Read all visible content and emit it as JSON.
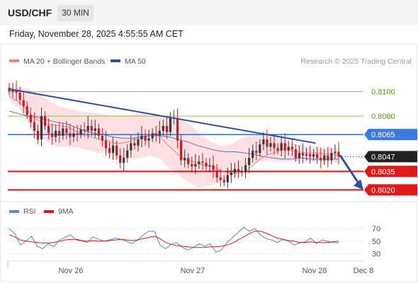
{
  "header": {
    "symbol": "USD/CHF",
    "timeframe": "30 MIN"
  },
  "datetime": "Friday, November 28, 2025 4:55:55 AM CET",
  "legend": {
    "ma20": "MA 20 + Bollinger Bands",
    "ma50": "MA 50",
    "rsi": "RSI",
    "ma9": "9MA"
  },
  "copyright": "Research © 2025 Trading Central",
  "colors": {
    "ma20": "#f08080",
    "ma50": "#2c4f9e",
    "bands_fill": "#ffd9dc",
    "bull": "#3a3a3a",
    "bear": "#c0202a",
    "resistance": "#8fc04d",
    "support": "#e01818",
    "pivot": "#3a7be0",
    "trendline": "#2f4f9e",
    "rsi": "#5b82d6"
  },
  "chart_data": [
    {
      "type": "candlestick",
      "title": "USD/CHF 30 MIN",
      "x_ticks": [
        "Nov 26",
        "Nov 27",
        "Nov 28",
        "Dec 8"
      ],
      "ylim": [
        0.8011,
        0.8114
      ],
      "levels": [
        {
          "label": "0.8100",
          "value": 0.81,
          "kind": "resistance"
        },
        {
          "label": "0.8080",
          "value": 0.808,
          "kind": "resistance"
        },
        {
          "label": "0.8065",
          "value": 0.8065,
          "kind": "pivot"
        },
        {
          "label": "0.8035",
          "value": 0.8035,
          "kind": "support"
        },
        {
          "label": "0.8020",
          "value": 0.802,
          "kind": "support"
        }
      ],
      "last_price": {
        "label": "0.8047",
        "value": 0.8047
      },
      "price_path": [
        0.81,
        0.8101,
        0.8099,
        0.8093,
        0.8088,
        0.8081,
        0.8075,
        0.8068,
        0.8061,
        0.808,
        0.8072,
        0.8066,
        0.8063,
        0.8068,
        0.8064,
        0.807,
        0.8066,
        0.8063,
        0.8066,
        0.8065,
        0.8069,
        0.8068,
        0.8072,
        0.8068,
        0.807,
        0.8064,
        0.806,
        0.8054,
        0.805,
        0.8056,
        0.8048,
        0.8042,
        0.8046,
        0.8052,
        0.8058,
        0.8056,
        0.8061,
        0.8064,
        0.806,
        0.8062,
        0.8066,
        0.8064,
        0.8068,
        0.8072,
        0.8067,
        0.8079,
        0.8078,
        0.806,
        0.8044,
        0.8046,
        0.8041,
        0.8039,
        0.8041,
        0.8043,
        0.8042,
        0.8039,
        0.804,
        0.8036,
        0.803,
        0.8028,
        0.8026,
        0.8032,
        0.8034,
        0.8037,
        0.8035,
        0.8034,
        0.804,
        0.8046,
        0.8052,
        0.805,
        0.8057,
        0.8061,
        0.8055,
        0.8058,
        0.8054,
        0.8052,
        0.8058,
        0.8052,
        0.8055,
        0.8053,
        0.8046,
        0.805,
        0.8048,
        0.8049,
        0.8047,
        0.8049,
        0.8046,
        0.8044,
        0.8048,
        0.8044,
        0.805,
        0.8051,
        0.8047
      ],
      "ma20_path": [
        0.8096,
        0.8093,
        0.8089,
        0.8083,
        0.8078,
        0.8075,
        0.8073,
        0.8073,
        0.8072,
        0.8071,
        0.8068,
        0.8066,
        0.8064,
        0.8062,
        0.8061,
        0.806,
        0.8058,
        0.8058,
        0.8059,
        0.8061,
        0.8062,
        0.8064,
        0.8066,
        0.8063,
        0.8057,
        0.8052,
        0.8047,
        0.8044,
        0.8043,
        0.8041,
        0.804,
        0.8039,
        0.8036,
        0.8034,
        0.8033,
        0.8034,
        0.8036,
        0.804,
        0.8045,
        0.8048,
        0.805,
        0.8052,
        0.8054,
        0.8052,
        0.8051,
        0.805,
        0.805,
        0.805,
        0.8049,
        0.8049,
        0.8049
      ],
      "ma50_path": [
        0.8084,
        0.8082,
        0.808,
        0.8079,
        0.8077,
        0.8075,
        0.8074,
        0.8071,
        0.8068,
        0.8066,
        0.8065,
        0.8063,
        0.8062,
        0.8062,
        0.8063,
        0.8064,
        0.8064,
        0.8063,
        0.8061,
        0.8059,
        0.8056,
        0.8054,
        0.8052,
        0.8051,
        0.8051,
        0.805,
        0.8049,
        0.8047,
        0.8046,
        0.8045,
        0.8045,
        0.8046,
        0.8045,
        0.8045,
        0.8045,
        0.8045
      ],
      "bb_upper": [
        0.8104,
        0.8103,
        0.8102,
        0.8098,
        0.8092,
        0.8088,
        0.8086,
        0.8084,
        0.8083,
        0.8082,
        0.8081,
        0.808,
        0.8081,
        0.8082,
        0.8082,
        0.808,
        0.8079,
        0.8078,
        0.8074,
        0.8066,
        0.806,
        0.8056,
        0.8056,
        0.8061,
        0.8064,
        0.8065,
        0.8064,
        0.8062,
        0.8059,
        0.8057,
        0.8055,
        0.8055,
        0.8054,
        0.8054
      ],
      "bb_lower": [
        0.8094,
        0.8086,
        0.8074,
        0.8064,
        0.8058,
        0.8055,
        0.8055,
        0.8054,
        0.8052,
        0.805,
        0.805,
        0.8046,
        0.8045,
        0.8046,
        0.8048,
        0.8046,
        0.8038,
        0.8032,
        0.8026,
        0.8022,
        0.8023,
        0.8026,
        0.803,
        0.8035,
        0.804,
        0.8043,
        0.8044,
        0.8043,
        0.8043,
        0.8043,
        0.8043,
        0.8043,
        0.8043,
        0.8042
      ],
      "trendline": [
        [
          0.0,
          0.8102
        ],
        [
          0.93,
          0.8058
        ]
      ],
      "forecast": {
        "from": 0.8047,
        "to": 0.802
      }
    },
    {
      "type": "line",
      "title": "RSI",
      "yticks": [
        70,
        50,
        30
      ],
      "ylim": [
        25,
        77
      ],
      "series": [
        {
          "name": "RSI",
          "values": [
            70,
            62,
            44,
            50,
            58,
            42,
            38,
            46,
            41,
            52,
            56,
            60,
            52,
            50,
            48,
            57,
            53,
            50,
            52,
            55,
            53,
            50,
            46,
            52,
            60,
            66,
            66,
            44,
            38,
            45,
            48,
            40,
            36,
            40,
            46,
            42,
            46,
            32,
            36,
            48,
            56,
            64,
            72,
            66,
            70,
            60,
            54,
            52,
            48,
            53,
            50,
            44,
            47,
            49,
            55,
            46,
            52,
            50,
            48,
            47
          ]
        },
        {
          "name": "9MA",
          "values": [
            60,
            57,
            52,
            50,
            49,
            48,
            47,
            47,
            48,
            50,
            52,
            53,
            53,
            51,
            50,
            51,
            50,
            50,
            51,
            52,
            53,
            52,
            51,
            52,
            54,
            56,
            58,
            54,
            48,
            45,
            43,
            42,
            41,
            40,
            40,
            40,
            41,
            41,
            42,
            44,
            47,
            52,
            57,
            62,
            66,
            66,
            63,
            59,
            55,
            53,
            51,
            50,
            48,
            48,
            49,
            48,
            48,
            48,
            49,
            50
          ]
        }
      ]
    }
  ]
}
